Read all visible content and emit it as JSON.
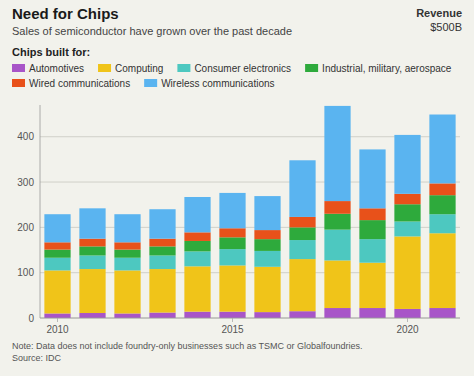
{
  "chart_data": {
    "type": "bar",
    "stacked": true,
    "title": "Need for Chips",
    "subtitle": "Sales of semiconductor have grown over the past decade",
    "legend_title": "Chips built for:",
    "annotations": [
      "Revenue",
      "$500B",
      "Note: Data does not include foundry-only businesses such as TSMC or Globalfoundries.",
      "Source: IDC"
    ],
    "categories": [
      "2010",
      null,
      null,
      null,
      null,
      "2015",
      null,
      null,
      null,
      null,
      "2020",
      null
    ],
    "series": [
      {
        "name": "Automotives",
        "color": "#a855c8",
        "values": [
          10,
          11,
          10,
          12,
          14,
          14,
          13,
          15,
          22,
          22,
          20,
          22
        ]
      },
      {
        "name": "Computing",
        "color": "#f0c419",
        "values": [
          95,
          97,
          95,
          96,
          100,
          102,
          100,
          115,
          105,
          100,
          160,
          165
        ]
      },
      {
        "name": "Consumer electronics",
        "color": "#4dc8c0",
        "values": [
          28,
          30,
          28,
          30,
          33,
          36,
          35,
          42,
          68,
          52,
          33,
          42
        ]
      },
      {
        "name": "Industrial, military, aerospace",
        "color": "#2eaa3c",
        "values": [
          18,
          20,
          18,
          20,
          23,
          26,
          26,
          28,
          35,
          42,
          38,
          42
        ]
      },
      {
        "name": "Wired communications",
        "color": "#e8511a",
        "values": [
          16,
          17,
          16,
          17,
          19,
          20,
          20,
          23,
          28,
          26,
          23,
          26
        ]
      },
      {
        "name": "Wireless communications",
        "color": "#5ab4f0",
        "values": [
          62,
          67,
          62,
          65,
          78,
          78,
          75,
          125,
          210,
          130,
          130,
          152
        ]
      }
    ],
    "ylim": [
      0,
      470
    ],
    "yticks": [
      0,
      100,
      200,
      300,
      400
    ],
    "grid": true,
    "legend": "top-left"
  }
}
